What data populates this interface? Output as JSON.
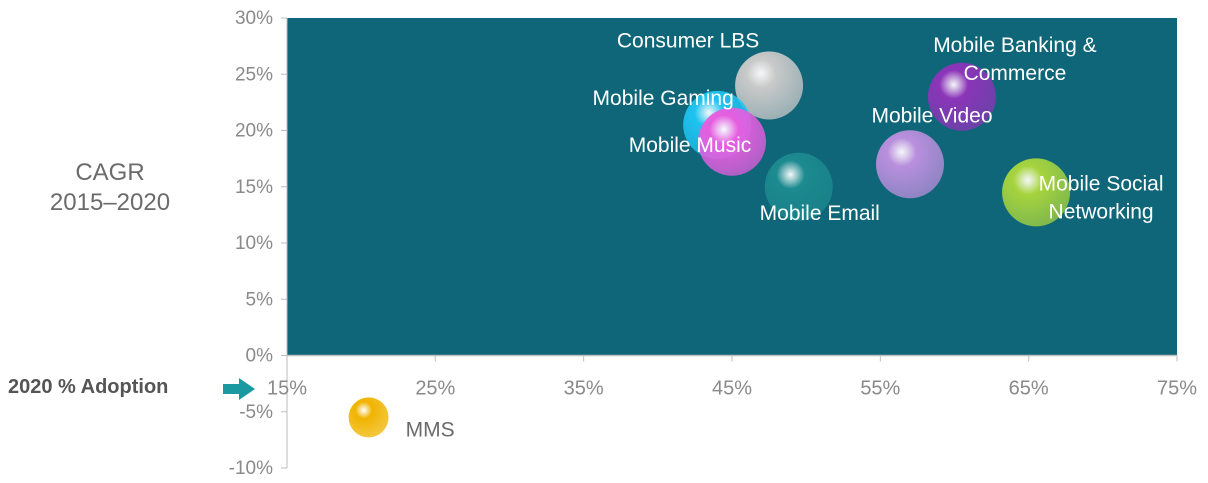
{
  "chart_data": {
    "type": "scatter",
    "ylabel": "CAGR 2015–2020",
    "ylabel_lines": [
      "CAGR",
      "2015–2020"
    ],
    "xlabel": "2020 % Adoption",
    "xlim": [
      15,
      75
    ],
    "ylim": [
      -10,
      30
    ],
    "x_ticks": [
      15,
      25,
      35,
      45,
      55,
      65,
      75
    ],
    "x_tick_labels": [
      "15%",
      "25%",
      "35%",
      "45%",
      "55%",
      "65%",
      "75%"
    ],
    "y_ticks": [
      30,
      25,
      20,
      15,
      10,
      5,
      0,
      -5,
      -10
    ],
    "y_tick_labels": [
      "30%",
      "25%",
      "20%",
      "15%",
      "10%",
      "5%",
      "0%",
      "-5%",
      "-10%"
    ],
    "grid": false,
    "plot_background": "#0e6678",
    "points": [
      {
        "label": "Consumer LBS",
        "lines": [
          "Consumer LBS"
        ],
        "x": 47.5,
        "y": 24,
        "color": "#c9c9c9"
      },
      {
        "label": "Mobile Gaming",
        "lines": [
          "Mobile Gaming"
        ],
        "x": 44,
        "y": 20.5,
        "color": "#1fc3f0"
      },
      {
        "label": "Mobile Music",
        "lines": [
          "Mobile Music"
        ],
        "x": 45,
        "y": 19,
        "color": "#e55ee0"
      },
      {
        "label": "Mobile Email",
        "lines": [
          "Mobile Email"
        ],
        "x": 49.5,
        "y": 15,
        "color": "#1c8a8f"
      },
      {
        "label": "Mobile Video",
        "lines": [
          "Mobile Video"
        ],
        "x": 57,
        "y": 17,
        "color": "#b98fdd"
      },
      {
        "label": "Mobile Banking & Commerce",
        "lines": [
          "Mobile Banking &",
          "Commerce"
        ],
        "x": 60.5,
        "y": 23,
        "color": "#8b35b8"
      },
      {
        "label": "Mobile Social Networking",
        "lines": [
          "Mobile Social",
          "Networking"
        ],
        "x": 65.5,
        "y": 14.5,
        "color": "#a6d43e"
      },
      {
        "label": "MMS",
        "lines": [
          "MMS"
        ],
        "x": 20.5,
        "y": -5.5,
        "color": "#f0b400"
      }
    ]
  }
}
